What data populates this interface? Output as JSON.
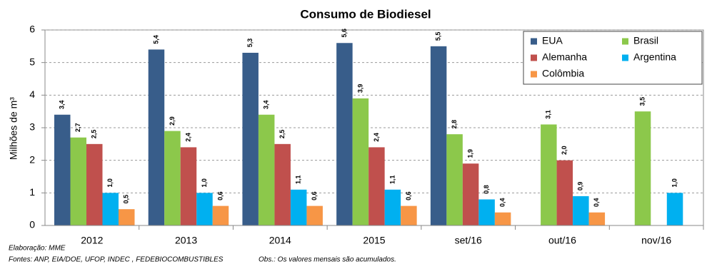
{
  "chart_data": {
    "type": "bar",
    "title": "Consumo de Biodiesel",
    "y_label": "Milhões de m³",
    "categories": [
      "2012",
      "2013",
      "2014",
      "2015",
      "set/16",
      "out/16",
      "nov/16"
    ],
    "series": [
      {
        "name": "EUA",
        "color": "#385d8a",
        "values": [
          3.4,
          5.4,
          5.3,
          5.6,
          5.5,
          null,
          null
        ],
        "value_labels": [
          "3,4",
          "5,4",
          "5,3",
          "5,6",
          "5,5",
          null,
          null
        ]
      },
      {
        "name": "Brasil",
        "color": "#8cc84b",
        "values": [
          2.7,
          2.9,
          3.4,
          3.9,
          2.8,
          3.1,
          3.5
        ],
        "value_labels": [
          "2,7",
          "2,9",
          "3,4",
          "3,9",
          "2,8",
          "3,1",
          "3,5"
        ]
      },
      {
        "name": "Alemanha",
        "color": "#c0504d",
        "values": [
          2.5,
          2.4,
          2.5,
          2.4,
          1.9,
          2.0,
          null
        ],
        "value_labels": [
          "2,5",
          "2,4",
          "2,5",
          "2,4",
          "1,9",
          "2,0",
          null
        ]
      },
      {
        "name": "Argentina",
        "color": "#00b0f0",
        "values": [
          1.0,
          1.0,
          1.1,
          1.1,
          0.8,
          0.9,
          1.0
        ],
        "value_labels": [
          "1,0",
          "1,0",
          "1,1",
          "1,1",
          "0,8",
          "0,9",
          "1,0"
        ]
      },
      {
        "name": "Colômbia",
        "color": "#f79646",
        "values": [
          0.5,
          0.6,
          0.6,
          0.6,
          0.4,
          0.4,
          null
        ],
        "value_labels": [
          "0,5",
          "0,6",
          "0,6",
          "0,6",
          "0,4",
          "0,4",
          null
        ]
      }
    ],
    "ylim": [
      0,
      6
    ],
    "yticks": [
      0,
      1,
      2,
      3,
      4,
      5,
      6
    ],
    "grid": true,
    "legend": "top-right",
    "notes": {
      "credit": "Elaboração: MME",
      "sources": "Fontes: ANP, EIA/DOE, UFOP, INDEC , FEDEBIOCOMBUSTIBLES",
      "obs": "Obs.: Os valores mensais são acumulados."
    }
  }
}
